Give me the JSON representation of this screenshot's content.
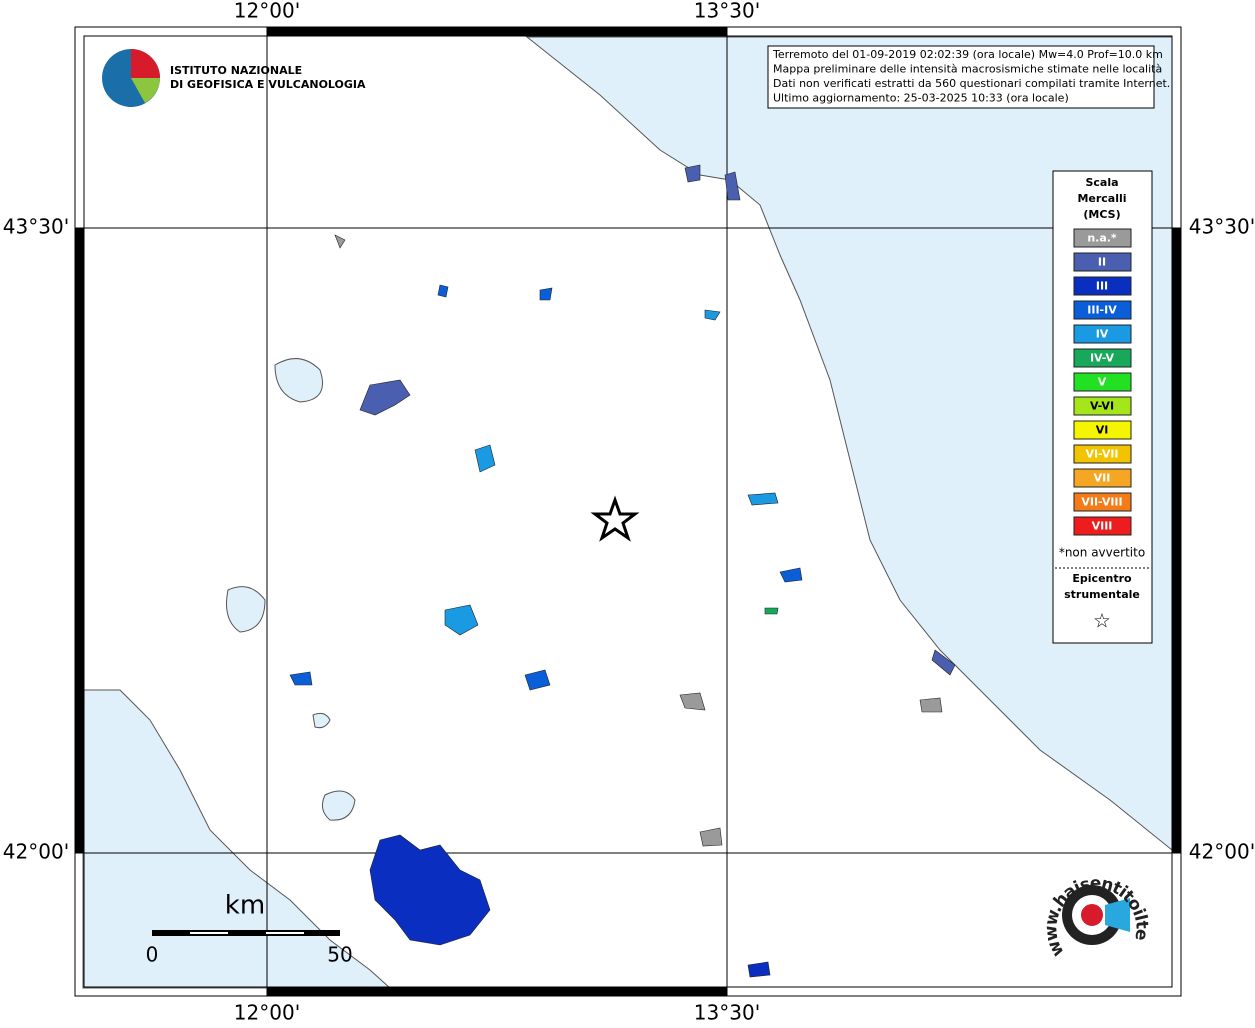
{
  "map": {
    "lon_labels": [
      "12°00'",
      "13°30'"
    ],
    "lat_labels": [
      "43°30'",
      "42°00'"
    ],
    "institute": [
      "ISTITUTO NAZIONALE",
      "DI GEOFISICA E VULCANOLOGIA"
    ],
    "info_lines": [
      "Terremoto del 01-09-2019 02:02:39 (ora locale) Mw=4.0 Prof=10.0 km",
      "Mappa preliminare delle intensità macrosismiche stimate nelle località",
      "Dati non verificati estratti da 560 questionari compilati tramite Internet.",
      "Ultimo aggiornamento: 25-03-2025 10:33 (ora locale)"
    ],
    "legend": {
      "title": [
        "Scala",
        "Mercalli",
        "(MCS)"
      ],
      "items": [
        {
          "label": "n.a.*",
          "color": "#9a9a9a"
        },
        {
          "label": "II",
          "color": "#4a5fb0"
        },
        {
          "label": "III",
          "color": "#0a2fc0"
        },
        {
          "label": "III-IV",
          "color": "#0a5ed8"
        },
        {
          "label": "IV",
          "color": "#1a9ae3"
        },
        {
          "label": "IV-V",
          "color": "#17a85a"
        },
        {
          "label": "V",
          "color": "#22e022"
        },
        {
          "label": "V-VI",
          "color": "#a4e61a"
        },
        {
          "label": "VI",
          "color": "#f5f500"
        },
        {
          "label": "VI-VII",
          "color": "#f2c400"
        },
        {
          "label": "VII",
          "color": "#f5a623"
        },
        {
          "label": "VII-VIII",
          "color": "#f57a18"
        },
        {
          "label": "VIII",
          "color": "#ee1d1d"
        }
      ],
      "note": "*non avvertito",
      "epicentre": [
        "Epicentro",
        "strumentale"
      ],
      "star": "☆"
    },
    "scale": {
      "unit": "km",
      "start": "0",
      "end": "50"
    },
    "site": "www.haisentitoilterremoto.it"
  }
}
